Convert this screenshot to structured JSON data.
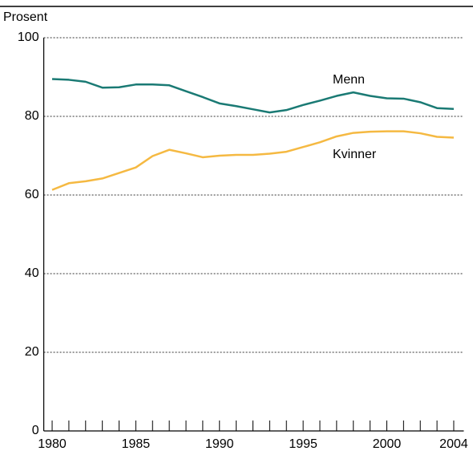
{
  "chart_data": {
    "type": "line",
    "ylabel": "Prosent",
    "x": [
      1980,
      1981,
      1982,
      1983,
      1984,
      1985,
      1986,
      1987,
      1988,
      1989,
      1990,
      1991,
      1992,
      1993,
      1994,
      1995,
      1996,
      1997,
      1998,
      1999,
      2000,
      2001,
      2002,
      2003,
      2004
    ],
    "series": [
      {
        "name": "Menn",
        "color": "#1a7a74",
        "values": [
          89.5,
          89.3,
          88.8,
          87.3,
          87.4,
          88.1,
          88.1,
          87.9,
          86.4,
          84.9,
          83.3,
          82.6,
          81.8,
          81.0,
          81.6,
          82.9,
          84.0,
          85.2,
          86.1,
          85.2,
          84.6,
          84.5,
          83.6,
          82.1,
          81.9
        ]
      },
      {
        "name": "Kvinner",
        "color": "#f5b942",
        "values": [
          61.3,
          63.0,
          63.5,
          64.2,
          65.6,
          67.0,
          69.9,
          71.5,
          70.6,
          69.6,
          70.0,
          70.2,
          70.2,
          70.5,
          71.0,
          72.2,
          73.4,
          74.9,
          75.8,
          76.1,
          76.2,
          76.2,
          75.7,
          74.8,
          74.6
        ]
      }
    ],
    "xlim": [
      1979.5,
      2004.6
    ],
    "xticks": [
      1980,
      1985,
      1990,
      1995,
      2000,
      2004
    ],
    "ylim": [
      0,
      100
    ],
    "yticks": [
      0,
      20,
      40,
      60,
      80,
      100
    ],
    "grid": true
  }
}
